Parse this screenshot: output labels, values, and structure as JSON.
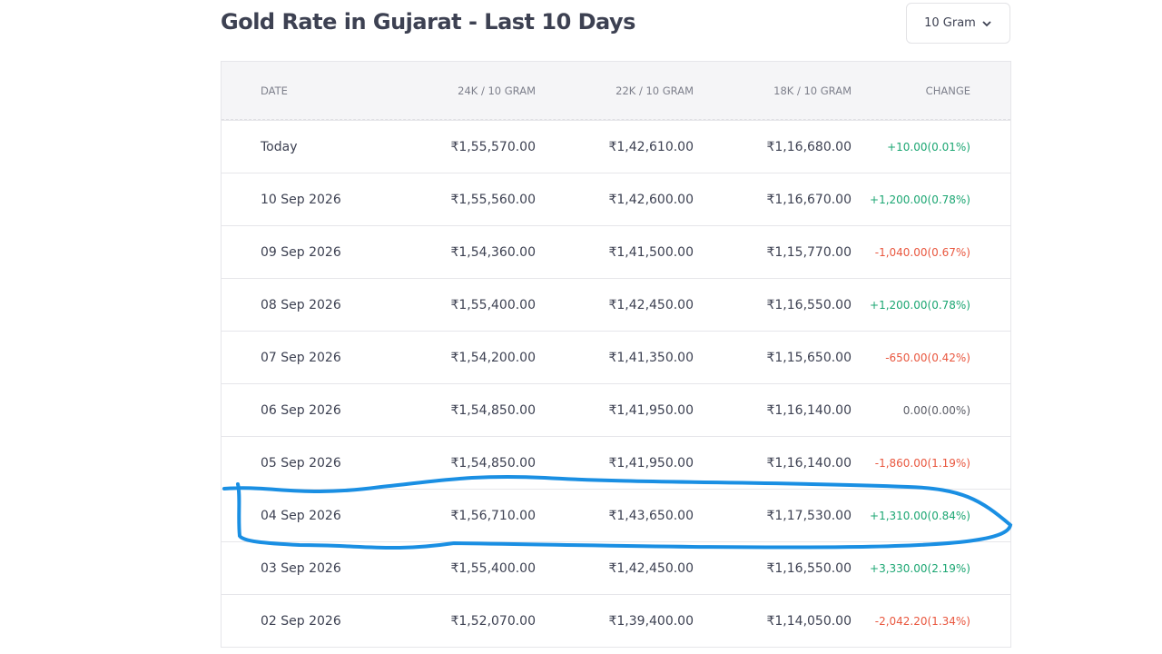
{
  "header": {
    "title": "Gold Rate in Gujarat - Last 10 Days",
    "unit_selector": "10 Gram"
  },
  "table": {
    "columns": [
      "DATE",
      "24K / 10 GRAM",
      "22K / 10 GRAM",
      "18K / 10 GRAM",
      "CHANGE"
    ],
    "rows": [
      [
        "Today",
        "₹1,55,570.00",
        "₹1,42,610.00",
        "₹1,16,680.00",
        "+10.00(0.01%)"
      ],
      [
        "10 Sep 2026",
        "₹1,55,560.00",
        "₹1,42,600.00",
        "₹1,16,670.00",
        "+1,200.00(0.78%)"
      ],
      [
        "09 Sep 2026",
        "₹1,54,360.00",
        "₹1,41,500.00",
        "₹1,15,770.00",
        "-1,040.00(0.67%)"
      ],
      [
        "08 Sep 2026",
        "₹1,55,400.00",
        "₹1,42,450.00",
        "₹1,16,550.00",
        "+1,200.00(0.78%)"
      ],
      [
        "07 Sep 2026",
        "₹1,54,200.00",
        "₹1,41,350.00",
        "₹1,15,650.00",
        "-650.00(0.42%)"
      ],
      [
        "06 Sep 2026",
        "₹1,54,850.00",
        "₹1,41,950.00",
        "₹1,16,140.00",
        "0.00(0.00%)"
      ],
      [
        "05 Sep 2026",
        "₹1,54,850.00",
        "₹1,41,950.00",
        "₹1,16,140.00",
        "-1,860.00(1.19%)"
      ],
      [
        "04 Sep 2026",
        "₹1,56,710.00",
        "₹1,43,650.00",
        "₹1,17,530.00",
        "+1,310.00(0.84%)"
      ],
      [
        "03 Sep 2026",
        "₹1,55,400.00",
        "₹1,42,450.00",
        "₹1,16,550.00",
        "+3,330.00(2.19%)"
      ],
      [
        "02 Sep 2026",
        "₹1,52,070.00",
        "₹1,39,400.00",
        "₹1,14,050.00",
        "-2,042.20(1.34%)"
      ]
    ]
  }
}
